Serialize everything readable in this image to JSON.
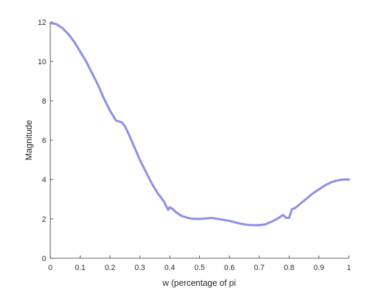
{
  "chart_data": {
    "type": "line",
    "xlabel": "w (percentage of pi",
    "ylabel": "Magnitude",
    "xlim": [
      0,
      1
    ],
    "ylim": [
      0,
      12
    ],
    "xticks": [
      0,
      0.1,
      0.2,
      0.3,
      0.4,
      0.5,
      0.6,
      0.7,
      0.8,
      0.9,
      1
    ],
    "xtick_labels": [
      "0",
      "0.1",
      "0.2",
      "0.3",
      "0.4",
      "0.5",
      "0.6",
      "0.7",
      "0.8",
      "0.9",
      "1"
    ],
    "yticks": [
      0,
      2,
      4,
      6,
      8,
      10,
      12
    ],
    "ytick_labels": [
      "0",
      "2",
      "4",
      "6",
      "8",
      "10",
      "12"
    ],
    "grid": false,
    "line_color": "#8f8fe8",
    "series": [
      {
        "x": [
          0,
          0.02,
          0.04,
          0.06,
          0.08,
          0.1,
          0.12,
          0.14,
          0.16,
          0.18,
          0.2,
          0.22,
          0.24,
          0.25,
          0.26,
          0.28,
          0.3,
          0.32,
          0.34,
          0.36,
          0.38,
          0.395,
          0.4,
          0.41,
          0.42,
          0.44,
          0.46,
          0.48,
          0.5,
          0.52,
          0.54,
          0.56,
          0.58,
          0.6,
          0.62,
          0.64,
          0.66,
          0.68,
          0.7,
          0.72,
          0.74,
          0.76,
          0.78,
          0.79,
          0.8,
          0.81,
          0.82,
          0.84,
          0.86,
          0.88,
          0.9,
          0.92,
          0.94,
          0.96,
          0.98,
          1
        ],
        "y": [
          11.95,
          11.9,
          11.7,
          11.4,
          11.0,
          10.5,
          10.0,
          9.4,
          8.8,
          8.1,
          7.5,
          7.0,
          6.9,
          6.7,
          6.4,
          5.7,
          5.0,
          4.4,
          3.8,
          3.3,
          2.9,
          2.45,
          2.6,
          2.5,
          2.35,
          2.15,
          2.05,
          2.0,
          2.0,
          2.02,
          2.05,
          2.0,
          1.95,
          1.9,
          1.82,
          1.75,
          1.7,
          1.68,
          1.68,
          1.72,
          1.85,
          2.0,
          2.2,
          2.05,
          2.05,
          2.5,
          2.55,
          2.8,
          3.05,
          3.3,
          3.5,
          3.7,
          3.85,
          3.95,
          4.0,
          4.0
        ]
      }
    ]
  }
}
